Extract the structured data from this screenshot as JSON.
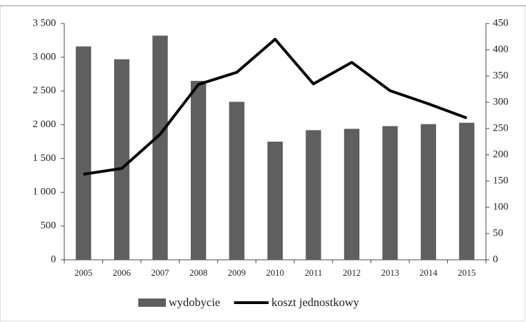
{
  "chart_data": {
    "type": "bar-line",
    "categories": [
      "2005",
      "2006",
      "2007",
      "2008",
      "2009",
      "2010",
      "2011",
      "2012",
      "2013",
      "2014",
      "2015"
    ],
    "series": [
      {
        "name": "wydobycie",
        "type": "bar",
        "color": "#5f5f5f",
        "values": [
          3160,
          2970,
          3320,
          2650,
          2340,
          1750,
          1920,
          1940,
          1980,
          2010,
          2030
        ]
      },
      {
        "name": "koszt jednostkowy",
        "type": "line",
        "axis": "y2",
        "color": "#000000",
        "values": [
          163,
          174,
          239,
          334,
          357,
          420,
          335,
          376,
          322,
          297,
          270
        ]
      }
    ],
    "ylim": [
      0,
      3500
    ],
    "yticks": [
      0,
      500,
      {
        "value": 1000,
        "label": "1 000"
      },
      {
        "value": 1500,
        "label": "1 500"
      },
      {
        "value": 2000,
        "label": "2 000"
      },
      {
        "value": 2500,
        "label": "2 500"
      },
      {
        "value": 3000,
        "label": "3 000"
      },
      {
        "value": 3500,
        "label": "3 500"
      }
    ],
    "y2lim": [
      0,
      450
    ],
    "y2ticks": [
      0,
      50,
      100,
      150,
      200,
      250,
      300,
      350,
      400,
      450
    ],
    "grid": false,
    "legend": "bottom"
  }
}
